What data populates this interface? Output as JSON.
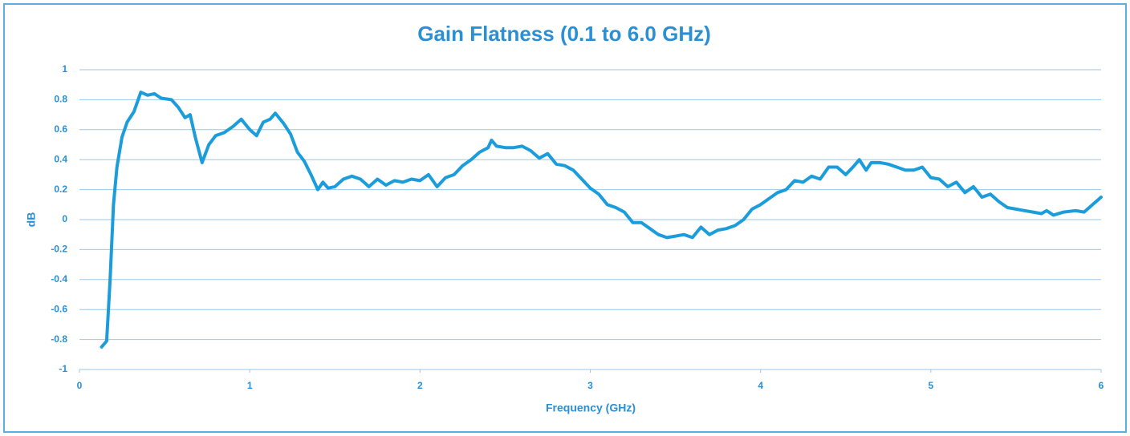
{
  "chart_data": {
    "type": "line",
    "title": "Gain Flatness (0.1 to 6.0 GHz)",
    "x_label": "Frequency (GHz)",
    "y_label": "dB",
    "xlim": [
      0,
      6
    ],
    "xticks": [
      0,
      1,
      2,
      3,
      4,
      5,
      6
    ],
    "ylim": [
      -1,
      1
    ],
    "yticks": [
      -1,
      -0.8,
      -0.6,
      -0.4,
      -0.2,
      0,
      0.2,
      0.4,
      0.6,
      0.8,
      1
    ],
    "grid": true,
    "series": [
      {
        "color": "#1c9ddb",
        "x": [
          0.13,
          0.16,
          0.18,
          0.2,
          0.22,
          0.25,
          0.28,
          0.32,
          0.36,
          0.4,
          0.44,
          0.48,
          0.54,
          0.58,
          0.62,
          0.65,
          0.68,
          0.72,
          0.76,
          0.8,
          0.85,
          0.9,
          0.95,
          1.0,
          1.04,
          1.08,
          1.12,
          1.15,
          1.2,
          1.24,
          1.28,
          1.32,
          1.36,
          1.4,
          1.43,
          1.46,
          1.5,
          1.55,
          1.6,
          1.65,
          1.7,
          1.75,
          1.8,
          1.85,
          1.9,
          1.95,
          2.0,
          2.05,
          2.1,
          2.15,
          2.2,
          2.25,
          2.3,
          2.35,
          2.4,
          2.42,
          2.45,
          2.5,
          2.55,
          2.6,
          2.65,
          2.7,
          2.75,
          2.8,
          2.85,
          2.9,
          2.95,
          3.0,
          3.05,
          3.1,
          3.15,
          3.2,
          3.25,
          3.3,
          3.35,
          3.4,
          3.45,
          3.5,
          3.55,
          3.6,
          3.65,
          3.7,
          3.75,
          3.8,
          3.85,
          3.9,
          3.95,
          4.0,
          4.05,
          4.1,
          4.15,
          4.2,
          4.25,
          4.3,
          4.35,
          4.4,
          4.45,
          4.5,
          4.55,
          4.58,
          4.62,
          4.65,
          4.7,
          4.75,
          4.8,
          4.85,
          4.9,
          4.95,
          5.0,
          5.05,
          5.1,
          5.15,
          5.2,
          5.25,
          5.3,
          5.35,
          5.4,
          5.45,
          5.5,
          5.55,
          5.6,
          5.65,
          5.68,
          5.72,
          5.78,
          5.85,
          5.9,
          5.95,
          6.0
        ],
        "values": [
          -0.85,
          -0.81,
          -0.4,
          0.1,
          0.35,
          0.55,
          0.65,
          0.72,
          0.85,
          0.83,
          0.84,
          0.81,
          0.8,
          0.75,
          0.68,
          0.7,
          0.55,
          0.38,
          0.5,
          0.56,
          0.58,
          0.62,
          0.67,
          0.6,
          0.56,
          0.65,
          0.67,
          0.71,
          0.64,
          0.57,
          0.45,
          0.39,
          0.3,
          0.2,
          0.25,
          0.21,
          0.22,
          0.27,
          0.29,
          0.27,
          0.22,
          0.27,
          0.23,
          0.26,
          0.25,
          0.27,
          0.26,
          0.3,
          0.22,
          0.28,
          0.3,
          0.36,
          0.4,
          0.45,
          0.48,
          0.53,
          0.49,
          0.48,
          0.48,
          0.49,
          0.46,
          0.41,
          0.44,
          0.37,
          0.36,
          0.33,
          0.27,
          0.21,
          0.17,
          0.1,
          0.08,
          0.05,
          -0.02,
          -0.02,
          -0.06,
          -0.1,
          -0.12,
          -0.11,
          -0.1,
          -0.12,
          -0.05,
          -0.1,
          -0.07,
          -0.06,
          -0.04,
          0.0,
          0.07,
          0.1,
          0.14,
          0.18,
          0.2,
          0.26,
          0.25,
          0.29,
          0.27,
          0.35,
          0.35,
          0.3,
          0.36,
          0.4,
          0.33,
          0.38,
          0.38,
          0.37,
          0.35,
          0.33,
          0.33,
          0.35,
          0.28,
          0.27,
          0.22,
          0.25,
          0.18,
          0.22,
          0.15,
          0.17,
          0.12,
          0.08,
          0.07,
          0.06,
          0.05,
          0.04,
          0.06,
          0.03,
          0.05,
          0.06,
          0.05,
          0.1,
          0.15
        ]
      }
    ]
  }
}
